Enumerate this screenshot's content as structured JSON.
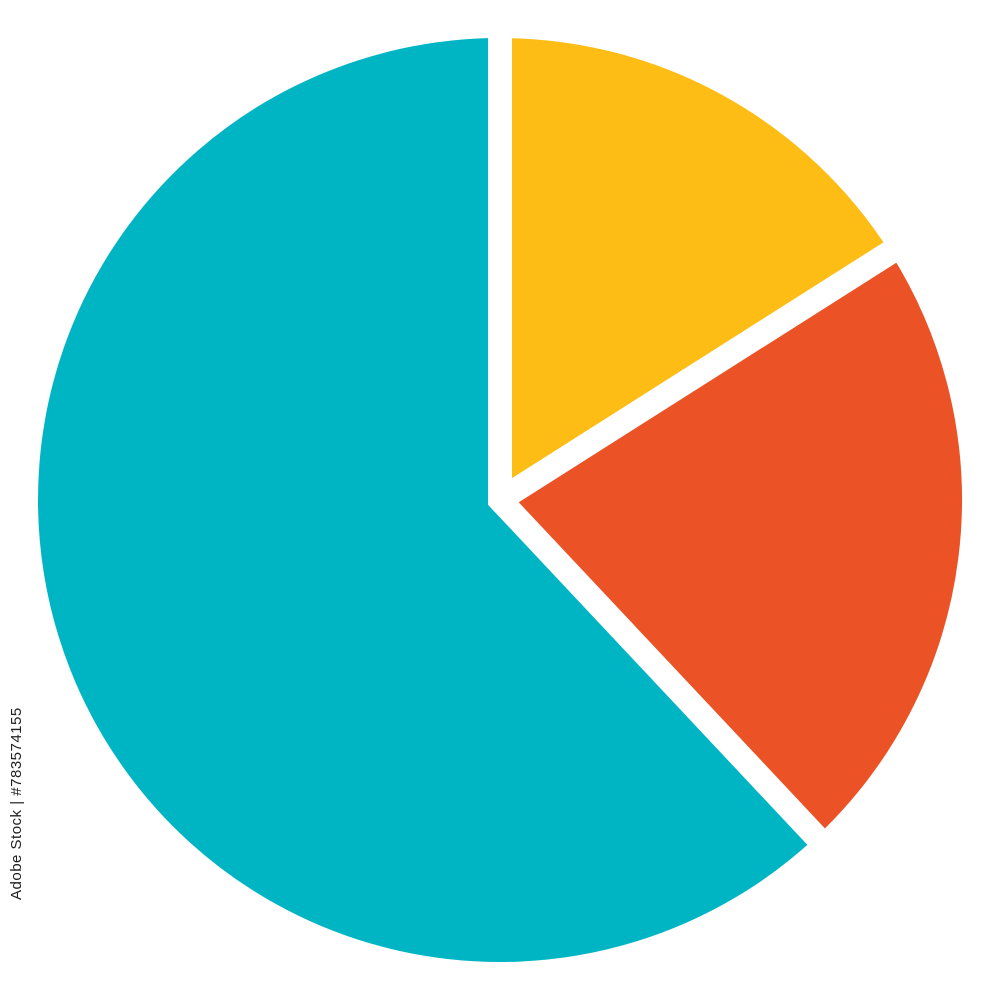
{
  "chart_data": {
    "type": "pie",
    "title": "",
    "start_angle": "12 o'clock",
    "direction": "clockwise",
    "slices": [
      {
        "value": 16,
        "color": "#FDBD14"
      },
      {
        "value": 22,
        "color": "#EB5226"
      },
      {
        "value": 62,
        "color": "#00B5C3"
      }
    ],
    "separator_color": "#FFFFFF"
  },
  "watermark": {
    "text": "Adobe Stock | #783574155"
  }
}
